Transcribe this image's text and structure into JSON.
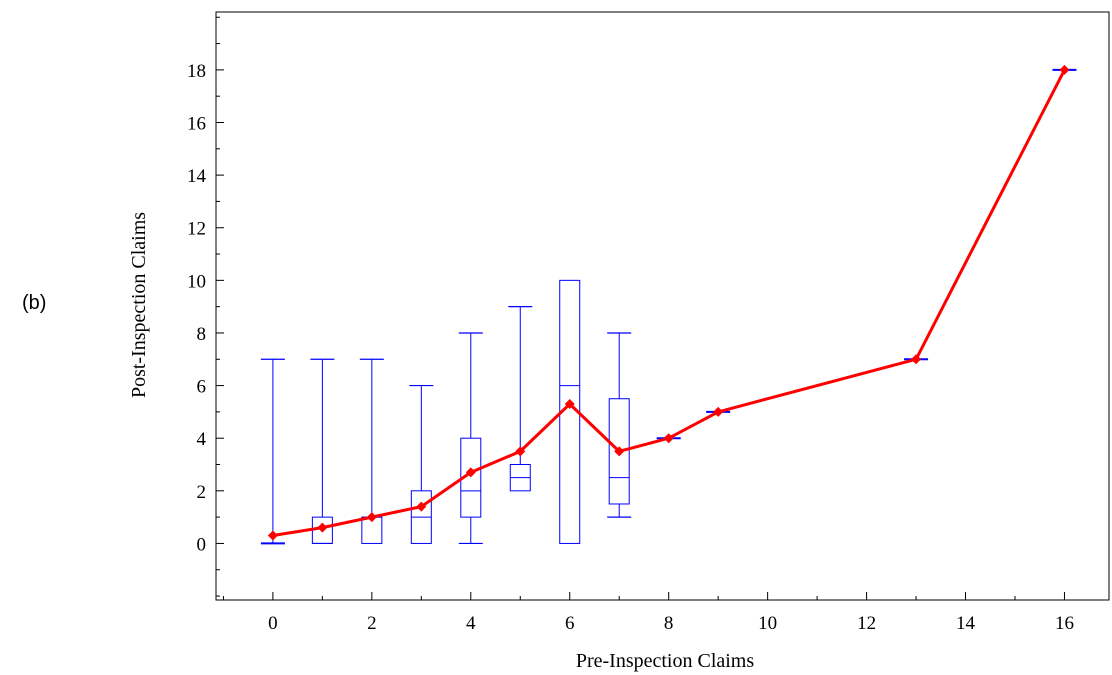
{
  "panel_label": "(b)",
  "chart_data": {
    "type": "box",
    "xlabel": "Pre-Inspection Claims",
    "ylabel": "Post-Inspection Claims",
    "xlim": [
      -1.15,
      16.9
    ],
    "ylim": [
      -2.15,
      20.2
    ],
    "xticks": [
      0,
      2,
      4,
      6,
      8,
      10,
      12,
      14,
      16
    ],
    "yticks": [
      0,
      2,
      4,
      6,
      8,
      10,
      12,
      14,
      16,
      18
    ],
    "grid": false,
    "colors": {
      "box": "#0000ff",
      "mean_line": "#ff0000"
    },
    "boxes": [
      {
        "x": 0,
        "min": 0,
        "q1": 0,
        "median": 0,
        "q3": 0,
        "max": 7
      },
      {
        "x": 1,
        "min": 0,
        "q1": 0,
        "median": 0,
        "q3": 1,
        "max": 7
      },
      {
        "x": 2,
        "min": 0,
        "q1": 0,
        "median": 1,
        "q3": 1,
        "max": 7
      },
      {
        "x": 3,
        "min": 0,
        "q1": 0,
        "median": 1,
        "q3": 2,
        "max": 6
      },
      {
        "x": 4,
        "min": 0,
        "q1": 1,
        "median": 2,
        "q3": 4,
        "max": 8
      },
      {
        "x": 5,
        "min": 2,
        "q1": 2,
        "median": 2.5,
        "q3": 3,
        "max": 9
      },
      {
        "x": 6,
        "min": 0,
        "q1": 0,
        "median": 6,
        "q3": 10,
        "max": 10
      },
      {
        "x": 7,
        "min": 1,
        "q1": 1.5,
        "median": 2.5,
        "q3": 5.5,
        "max": 8
      },
      {
        "x": 8,
        "min": 4,
        "q1": 4,
        "median": 4,
        "q3": 4,
        "max": 4
      },
      {
        "x": 9,
        "min": 5,
        "q1": 5,
        "median": 5,
        "q3": 5,
        "max": 5
      },
      {
        "x": 13,
        "min": 7,
        "q1": 7,
        "median": 7,
        "q3": 7,
        "max": 7
      },
      {
        "x": 16,
        "min": 18,
        "q1": 18,
        "median": 18,
        "q3": 18,
        "max": 18
      }
    ],
    "series": [
      {
        "type": "line",
        "x": [
          0,
          1,
          2,
          3,
          4,
          5,
          6,
          7,
          8,
          9,
          13,
          16
        ],
        "values": [
          0.3,
          0.6,
          1.0,
          1.4,
          2.7,
          3.5,
          5.3,
          3.5,
          4.0,
          5.0,
          7.0,
          18.0
        ]
      }
    ]
  }
}
